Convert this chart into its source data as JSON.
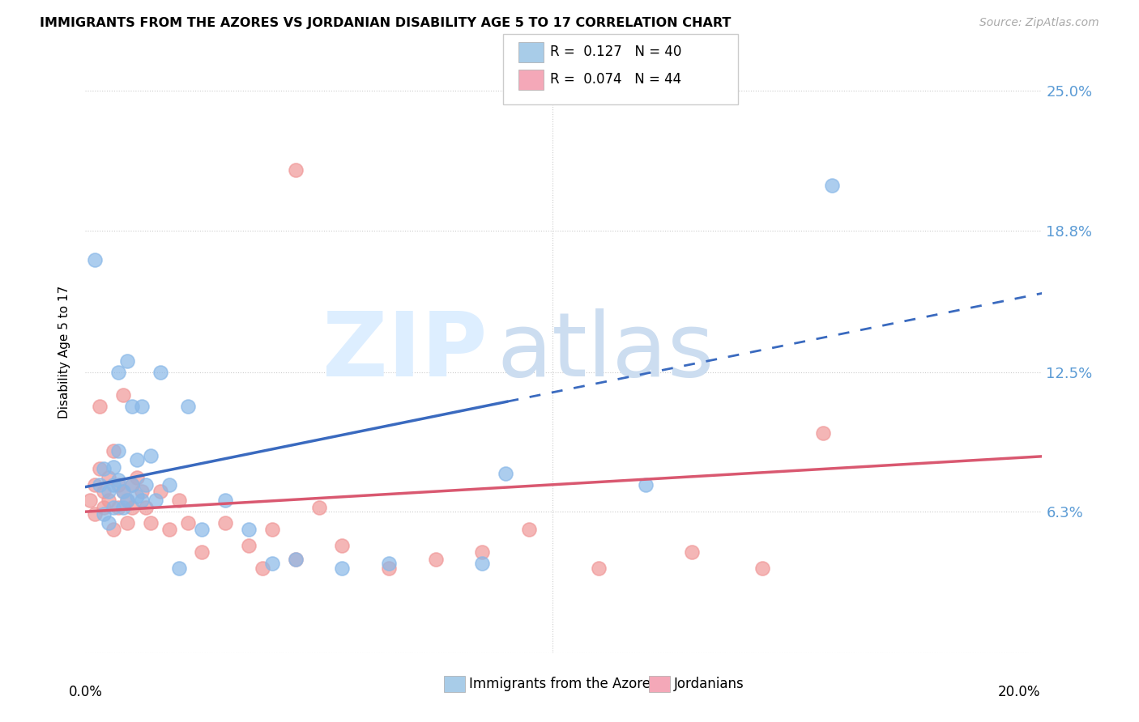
{
  "title": "IMMIGRANTS FROM THE AZORES VS JORDANIAN DISABILITY AGE 5 TO 17 CORRELATION CHART",
  "source": "Source: ZipAtlas.com",
  "ylabel": "Disability Age 5 to 17",
  "series1_name": "Immigrants from the Azores",
  "series2_name": "Jordanians",
  "series1_color": "#89b8e8",
  "series2_color": "#f09898",
  "trendline1_color": "#3a6abf",
  "trendline2_color": "#d95870",
  "legend1_color": "#a8cce8",
  "legend2_color": "#f4a8b8",
  "background_color": "#ffffff",
  "ytick_vals": [
    0.0,
    0.063,
    0.125,
    0.188,
    0.25
  ],
  "ytick_labels": [
    "",
    "6.3%",
    "12.5%",
    "18.8%",
    "25.0%"
  ],
  "xlim": [
    0.0,
    0.205
  ],
  "ylim": [
    0.0,
    0.268
  ],
  "legend1_r": "0.127",
  "legend2_r": "0.074",
  "legend1_n": "40",
  "legend2_n": "44",
  "azores_x": [
    0.002,
    0.003,
    0.004,
    0.004,
    0.005,
    0.005,
    0.006,
    0.006,
    0.006,
    0.007,
    0.007,
    0.007,
    0.008,
    0.008,
    0.009,
    0.009,
    0.01,
    0.01,
    0.011,
    0.011,
    0.012,
    0.012,
    0.013,
    0.014,
    0.015,
    0.016,
    0.018,
    0.02,
    0.022,
    0.025,
    0.03,
    0.035,
    0.04,
    0.045,
    0.055,
    0.065,
    0.085,
    0.09,
    0.12,
    0.16
  ],
  "azores_y": [
    0.175,
    0.075,
    0.082,
    0.062,
    0.072,
    0.058,
    0.083,
    0.075,
    0.065,
    0.09,
    0.125,
    0.077,
    0.072,
    0.065,
    0.13,
    0.068,
    0.075,
    0.11,
    0.07,
    0.086,
    0.11,
    0.068,
    0.075,
    0.088,
    0.068,
    0.125,
    0.075,
    0.038,
    0.11,
    0.055,
    0.068,
    0.055,
    0.04,
    0.042,
    0.038,
    0.04,
    0.04,
    0.08,
    0.075,
    0.208
  ],
  "jordan_x": [
    0.001,
    0.002,
    0.002,
    0.003,
    0.003,
    0.004,
    0.004,
    0.005,
    0.005,
    0.006,
    0.006,
    0.007,
    0.007,
    0.008,
    0.008,
    0.009,
    0.009,
    0.01,
    0.01,
    0.011,
    0.012,
    0.013,
    0.014,
    0.016,
    0.018,
    0.02,
    0.022,
    0.025,
    0.03,
    0.035,
    0.04,
    0.045,
    0.05,
    0.055,
    0.065,
    0.075,
    0.085,
    0.095,
    0.11,
    0.13,
    0.145,
    0.158,
    0.045,
    0.038
  ],
  "jordan_y": [
    0.068,
    0.075,
    0.062,
    0.11,
    0.082,
    0.072,
    0.065,
    0.068,
    0.078,
    0.09,
    0.055,
    0.075,
    0.065,
    0.115,
    0.072,
    0.068,
    0.058,
    0.075,
    0.065,
    0.078,
    0.072,
    0.065,
    0.058,
    0.072,
    0.055,
    0.068,
    0.058,
    0.045,
    0.058,
    0.048,
    0.055,
    0.042,
    0.065,
    0.048,
    0.038,
    0.042,
    0.045,
    0.055,
    0.038,
    0.045,
    0.038,
    0.098,
    0.215,
    0.038
  ],
  "trendline1_x_solid_end": 0.09,
  "trendline1_slope": 0.42,
  "trendline1_intercept": 0.074,
  "trendline2_slope": 0.12,
  "trendline2_intercept": 0.063
}
